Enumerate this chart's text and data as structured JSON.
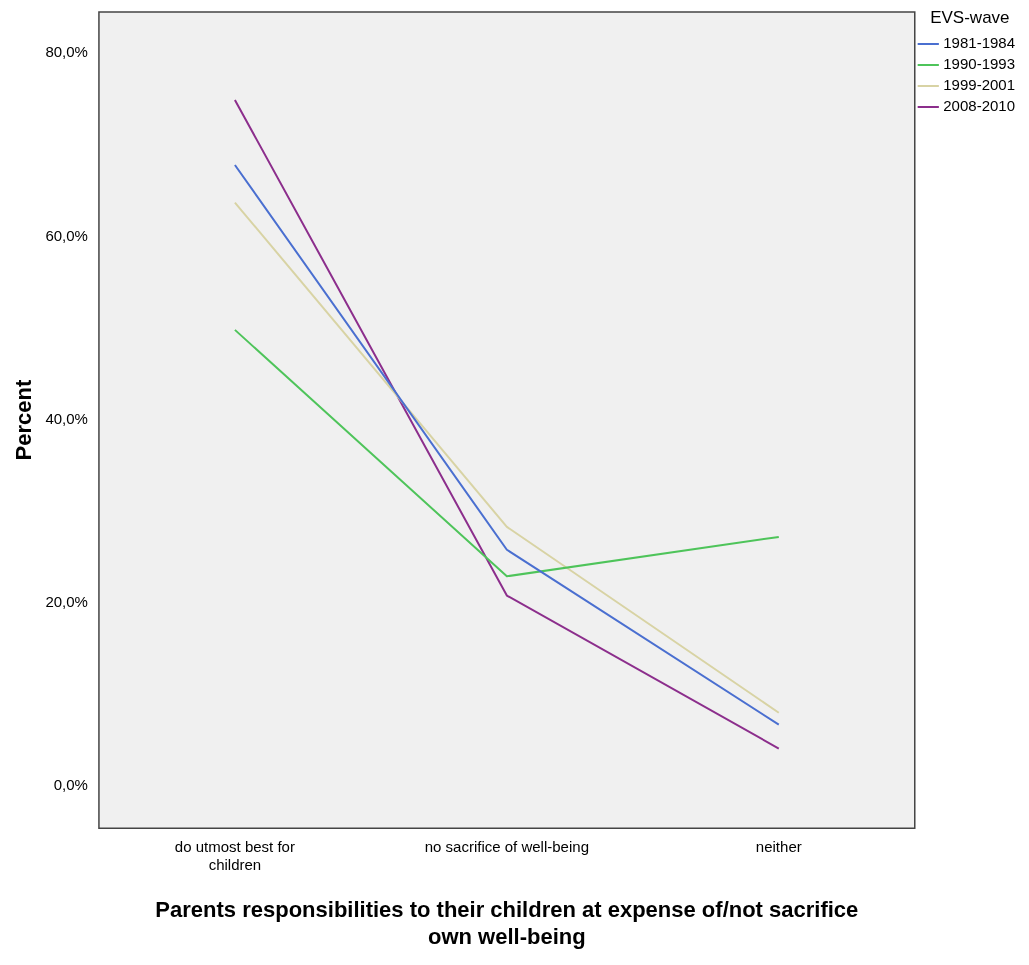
{
  "chart_data": {
    "type": "line",
    "xlabel": "Parents responsibilities to their children at expense of/not sacrifice own well-being",
    "ylabel": "Percent",
    "legend_title": "EVS-wave",
    "legend": "top right",
    "grid": false,
    "marker": "none",
    "line_style": "solid",
    "categories": [
      "do utmost best for children",
      "no sacrifice of well-being",
      "neither"
    ],
    "ylim": [
      -4.6,
      84.5
    ],
    "yticks": [
      {
        "value": 0,
        "label": "0,0%"
      },
      {
        "value": 20,
        "label": "20,0%"
      },
      {
        "value": 40,
        "label": "40,0%"
      },
      {
        "value": 60,
        "label": "60,0%"
      },
      {
        "value": 80,
        "label": "80,0%"
      }
    ],
    "series": [
      {
        "name": "1981-1984",
        "color": "#4a6fd0",
        "values": [
          67.8,
          25.8,
          6.7
        ]
      },
      {
        "name": "1990-1993",
        "color": "#4ec45a",
        "values": [
          49.8,
          22.9,
          27.2
        ]
      },
      {
        "name": "1999-2001",
        "color": "#d8d3a4",
        "values": [
          63.7,
          28.3,
          8.0
        ]
      },
      {
        "name": "2008-2010",
        "color": "#8c2e8c",
        "values": [
          74.9,
          20.8,
          4.1
        ]
      }
    ]
  }
}
